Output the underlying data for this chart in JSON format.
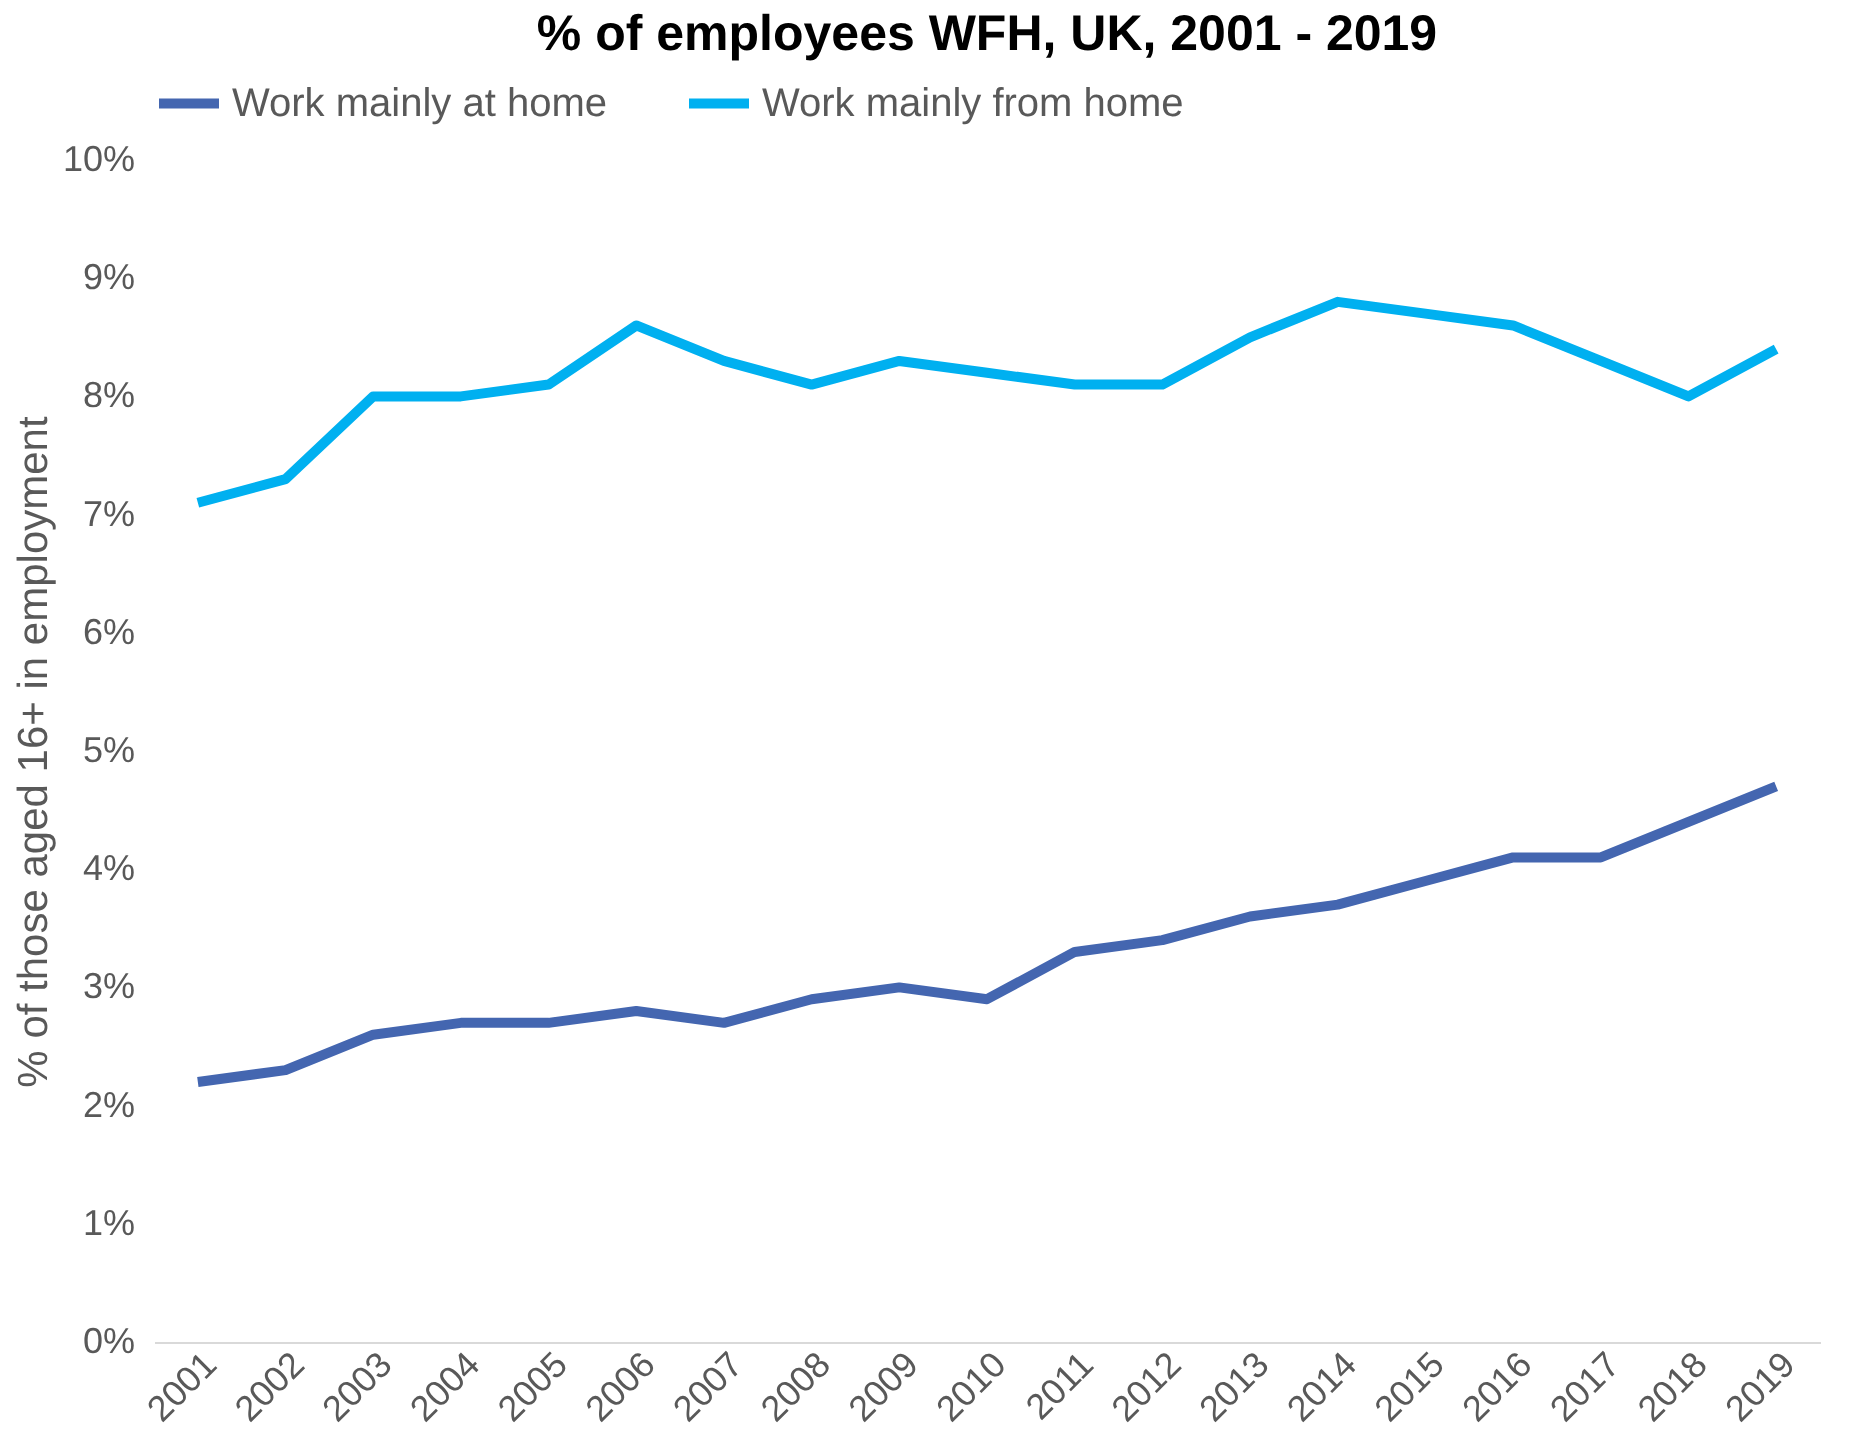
{
  "chart_data": {
    "type": "line",
    "title": "% of employees WFH, UK, 2001 - 2019",
    "ylabel": "% of those aged 16+ in employment",
    "categories": [
      "2001",
      "2002",
      "2003",
      "2004",
      "2005",
      "2006",
      "2007",
      "2008",
      "2009",
      "2010",
      "2011",
      "2012",
      "2013",
      "2014",
      "2015",
      "2016",
      "2017",
      "2018",
      "2019"
    ],
    "series": [
      {
        "name": "Work mainly at home",
        "color": "#4466b0",
        "values": [
          2.2,
          2.3,
          2.6,
          2.7,
          2.7,
          2.8,
          2.7,
          2.9,
          3.0,
          2.9,
          3.3,
          3.4,
          3.6,
          3.7,
          3.9,
          4.1,
          4.1,
          4.4,
          4.7
        ]
      },
      {
        "name": "Work mainly from home",
        "color": "#00b0f0",
        "values": [
          7.1,
          7.3,
          8.0,
          8.0,
          8.1,
          8.6,
          8.3,
          8.1,
          8.3,
          8.2,
          8.1,
          8.1,
          8.5,
          8.8,
          8.7,
          8.6,
          8.3,
          8.0,
          8.4
        ]
      }
    ],
    "ylim": [
      0,
      10
    ],
    "yticks": [
      {
        "value": 0,
        "label": "0%"
      },
      {
        "value": 1,
        "label": "1%"
      },
      {
        "value": 2,
        "label": "2%"
      },
      {
        "value": 3,
        "label": "3%"
      },
      {
        "value": 4,
        "label": "4%"
      },
      {
        "value": 5,
        "label": "5%"
      },
      {
        "value": 6,
        "label": "6%"
      },
      {
        "value": 7,
        "label": "7%"
      },
      {
        "value": 8,
        "label": "8%"
      },
      {
        "value": 9,
        "label": "9%"
      },
      {
        "value": 10,
        "label": "10%"
      }
    ],
    "grid": false,
    "legend": "top",
    "marker": "none",
    "line_style": "solid"
  }
}
